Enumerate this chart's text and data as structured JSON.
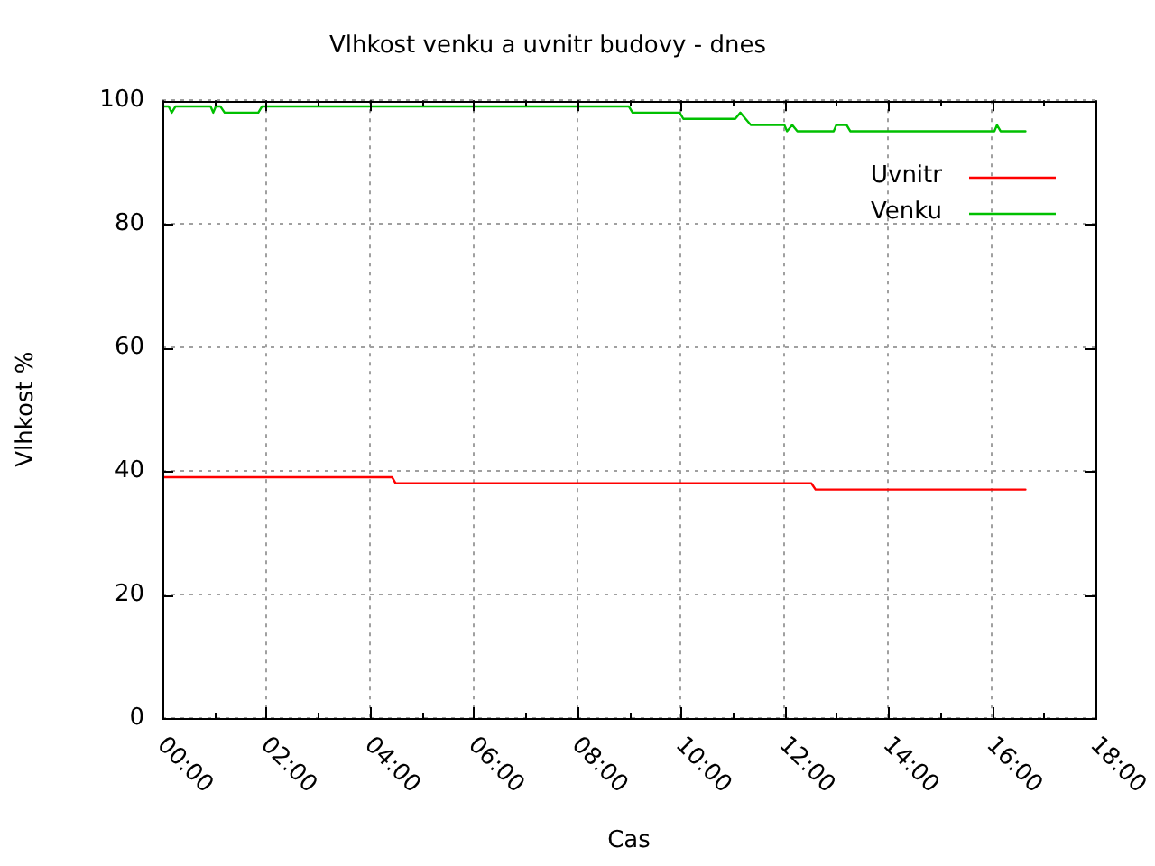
{
  "chart_data": {
    "type": "line",
    "title": "Vlhkost venku a uvnitr budovy - dnes",
    "xlabel": "Cas",
    "ylabel": "Vlhkost %",
    "xlim": [
      0,
      18
    ],
    "xticks": [
      {
        "value": 0,
        "label": "00:00"
      },
      {
        "value": 1,
        "label": null
      },
      {
        "value": 2,
        "label": "02:00"
      },
      {
        "value": 3,
        "label": null
      },
      {
        "value": 4,
        "label": "04:00"
      },
      {
        "value": 5,
        "label": null
      },
      {
        "value": 6,
        "label": "06:00"
      },
      {
        "value": 7,
        "label": null
      },
      {
        "value": 8,
        "label": "08:00"
      },
      {
        "value": 9,
        "label": null
      },
      {
        "value": 10,
        "label": "10:00"
      },
      {
        "value": 11,
        "label": null
      },
      {
        "value": 12,
        "label": "12:00"
      },
      {
        "value": 13,
        "label": null
      },
      {
        "value": 14,
        "label": "14:00"
      },
      {
        "value": 15,
        "label": null
      },
      {
        "value": 16,
        "label": "16:00"
      },
      {
        "value": 17,
        "label": null
      },
      {
        "value": 18,
        "label": "18:00"
      }
    ],
    "ylim": [
      0,
      100
    ],
    "yticks": [
      0,
      20,
      40,
      60,
      80,
      100
    ],
    "grid": true,
    "legend": "top right",
    "marker": "none",
    "line_style": "solid",
    "series": [
      {
        "name": "Uvnitr",
        "color": "#ff0000",
        "x": [
          0,
          4.43,
          4.5,
          12.52,
          12.6,
          16.65
        ],
        "values": [
          39,
          39,
          38,
          38,
          37,
          37
        ]
      },
      {
        "name": "Venku",
        "color": "#00c000",
        "x": [
          0,
          0.12,
          0.18,
          0.25,
          0.93,
          0.98,
          1.03,
          1.12,
          1.2,
          1.85,
          1.92,
          9.0,
          9.07,
          9.98,
          10.05,
          11.05,
          11.15,
          11.25,
          11.35,
          12.0,
          12.05,
          12.15,
          12.25,
          12.95,
          13.0,
          13.2,
          13.27,
          16.05,
          16.1,
          16.17,
          16.65
        ],
        "values": [
          99,
          99,
          98,
          99,
          99,
          98,
          99,
          99,
          98,
          98,
          99,
          99,
          98,
          98,
          97,
          97,
          98,
          97,
          96,
          96,
          95,
          96,
          95,
          95,
          96,
          96,
          95,
          95,
          96,
          95,
          95
        ]
      }
    ]
  }
}
